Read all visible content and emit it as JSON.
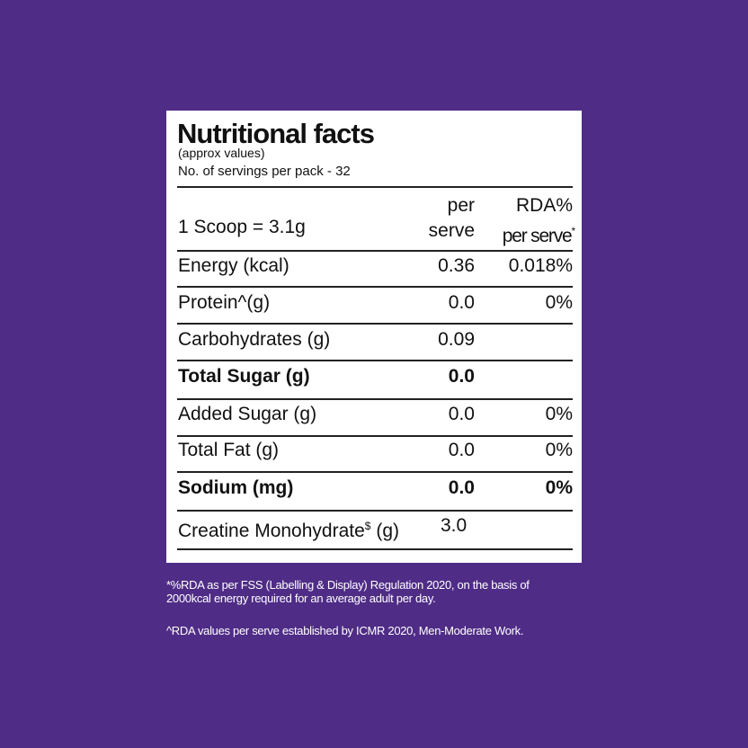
{
  "panel": {
    "title": "Nutritional facts",
    "subtitle": "(approx values)",
    "servings": "No. of servings per pack - 32",
    "header": {
      "serving": "1 Scoop = 3.1g",
      "col1": [
        "per",
        "serve"
      ],
      "col2_line1": "RDA%",
      "col2_line2": "per serve",
      "col2_sup": "*"
    },
    "rows": [
      {
        "name": "Energy (kcal)",
        "per_serve": "0.36",
        "rda": "0.018%"
      },
      {
        "name": "Protein^(g)",
        "per_serve": "0.0",
        "rda": "0%"
      },
      {
        "name": "Carbohydrates (g)",
        "per_serve": "0.09"
      },
      {
        "name": "Total Sugar (g)",
        "per_serve": "0.0",
        "bold": true
      },
      {
        "name": "Added Sugar (g)",
        "per_serve": "0.0",
        "rda": "0%"
      },
      {
        "name": "Total Fat (g)",
        "per_serve": "0.0",
        "rda": "0%"
      },
      {
        "name": "Sodium (mg)",
        "per_serve": "0.0",
        "rda": "0%",
        "bold": true
      },
      {
        "name": "Creatine Monohydrate",
        "name_sup": "$",
        "name_suffix": "(g)",
        "per_serve": "3.0"
      }
    ]
  },
  "footnotes": [
    [
      "*%RDA as per FSS (Labelling & Display) Regulation 2020, on the basis of",
      "2000kcal energy required for an average adult per day."
    ],
    [
      "^RDA values per serve established by ICMR 2020, Men-Moderate Work."
    ]
  ]
}
